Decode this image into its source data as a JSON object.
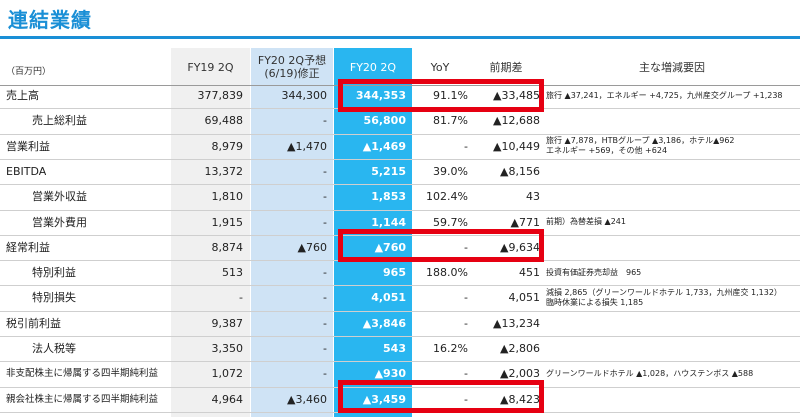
{
  "page": {
    "title": "連結業績",
    "unit": "（百万円）"
  },
  "columns": {
    "fy19": "FY19 2Q",
    "forecast_line1": "FY20 2Q予想",
    "forecast_line2": "(6/19)修正",
    "fy20": "FY20 2Q",
    "yoy": "YoY",
    "diff": "前期差",
    "factors": "主な増減要因"
  },
  "rows": [
    {
      "label": "売上高",
      "fy19": "377,839",
      "forecast": "344,300",
      "fy20": "344,353",
      "yoy": "91.1%",
      "diff": "▲33,485",
      "note": [
        "旅行 ▲37,241，エネルギー +4,725，九州産交グループ +1,238"
      ]
    },
    {
      "label": "売上総利益",
      "fy19": "69,488",
      "forecast": "-",
      "fy20": "56,800",
      "yoy": "81.7%",
      "diff": "▲12,688",
      "note": []
    },
    {
      "label": "営業利益",
      "fy19": "8,979",
      "forecast": "▲1,470",
      "fy20": "▲1,469",
      "yoy": "-",
      "diff": "▲10,449",
      "note": [
        "旅行 ▲7,878，HTBグループ ▲3,186，ホテル▲962",
        "エネルギー +569，その他 +624"
      ]
    },
    {
      "label": "EBITDA",
      "fy19": "13,372",
      "forecast": "-",
      "fy20": "5,215",
      "yoy": "39.0%",
      "diff": "▲8,156",
      "note": []
    },
    {
      "label": "営業外収益",
      "fy19": "1,810",
      "forecast": "-",
      "fy20": "1,853",
      "yoy": "102.4%",
      "diff": "43",
      "note": []
    },
    {
      "label": "営業外費用",
      "fy19": "1,915",
      "forecast": "-",
      "fy20": "1,144",
      "yoy": "59.7%",
      "diff": "▲771",
      "note": [
        "前期）為替差損 ▲241"
      ]
    },
    {
      "label": "経常利益",
      "fy19": "8,874",
      "forecast": "▲760",
      "fy20": "▲760",
      "yoy": "-",
      "diff": "▲9,634",
      "note": []
    },
    {
      "label": "特別利益",
      "fy19": "513",
      "forecast": "-",
      "fy20": "965",
      "yoy": "188.0%",
      "diff": "451",
      "note": [
        "投資有価証券売却益　965"
      ]
    },
    {
      "label": "特別損失",
      "fy19": "-",
      "forecast": "-",
      "fy20": "4,051",
      "yoy": "-",
      "diff": "4,051",
      "note": [
        "減損 2,865（グリーンワールドホテル 1,733，九州産交 1,132）",
        "臨時休業による損失 1,185"
      ]
    },
    {
      "label": "税引前利益",
      "fy19": "9,387",
      "forecast": "-",
      "fy20": "▲3,846",
      "yoy": "-",
      "diff": "▲13,234",
      "note": []
    },
    {
      "label": "法人税等",
      "fy19": "3,350",
      "forecast": "-",
      "fy20": "543",
      "yoy": "16.2%",
      "diff": "▲2,806",
      "note": []
    },
    {
      "label": "非支配株主に帰属する四半期純利益",
      "fy19": "1,072",
      "forecast": "-",
      "fy20": "▲930",
      "yoy": "-",
      "diff": "▲2,003",
      "note": [
        "グリーンワールドホテル ▲1,028，ハウステンボス ▲588"
      ]
    },
    {
      "label": "親会社株主に帰属する四半期純利益",
      "fy19": "4,964",
      "forecast": "▲3,460",
      "fy20": "▲3,459",
      "yoy": "-",
      "diff": "▲8,423",
      "note": []
    }
  ],
  "colors": {
    "title": "#1a8fd6",
    "fy19_band": "#f0f0f0",
    "forecast_band": "#cfe3f5",
    "fy20_band": "#29b6f0",
    "highlight": "#e60012"
  }
}
